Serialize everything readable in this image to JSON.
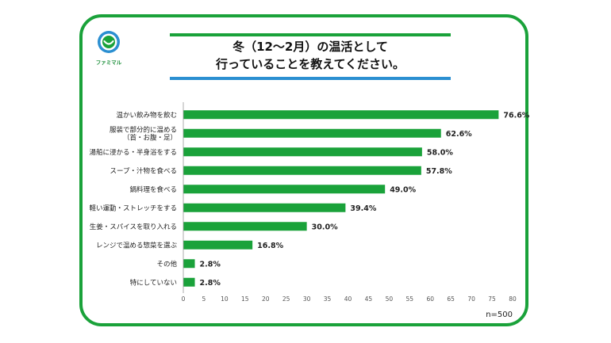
{
  "brand": {
    "name": "ファミマル",
    "primary_color": "#1aa23a",
    "accent_color": "#2b8fd1",
    "logo_icon": "smile-face-icon"
  },
  "title": {
    "line1": "冬（12〜2月）の温活として",
    "line2": "行っていることを教えてください。"
  },
  "sample_size": "n=500",
  "chart_data": {
    "type": "bar",
    "orientation": "horizontal",
    "title": "冬（12〜2月）の温活として行っていることを教えてください。",
    "xlabel": "",
    "ylabel": "",
    "xlim": [
      0,
      80
    ],
    "x_ticks": [
      0,
      5,
      10,
      15,
      20,
      25,
      30,
      35,
      40,
      45,
      50,
      55,
      60,
      65,
      70,
      75,
      80
    ],
    "grid": false,
    "unit": "%",
    "categories": [
      [
        "温かい飲み物を飲む"
      ],
      [
        "服装で部分的に温める",
        "（首・お腹・足）"
      ],
      [
        "湯船に浸かる・半身浴をする"
      ],
      [
        "スープ・汁物を食べる"
      ],
      [
        "鍋料理を食べる"
      ],
      [
        "軽い運動・ストレッチをする"
      ],
      [
        "生姜・スパイスを取り入れる"
      ],
      [
        "レンジで温める惣菜を選ぶ"
      ],
      [
        "その他"
      ],
      [
        "特にしていない"
      ]
    ],
    "values": [
      76.6,
      62.6,
      58.0,
      57.8,
      49.0,
      39.4,
      30.0,
      16.8,
      2.8,
      2.8
    ],
    "value_labels": [
      "76.6%",
      "62.6%",
      "58.0%",
      "57.8%",
      "49.0%",
      "39.4%",
      "30.0%",
      "16.8%",
      "2.8%",
      "2.8%"
    ],
    "bar_color": "#1aa23a"
  }
}
